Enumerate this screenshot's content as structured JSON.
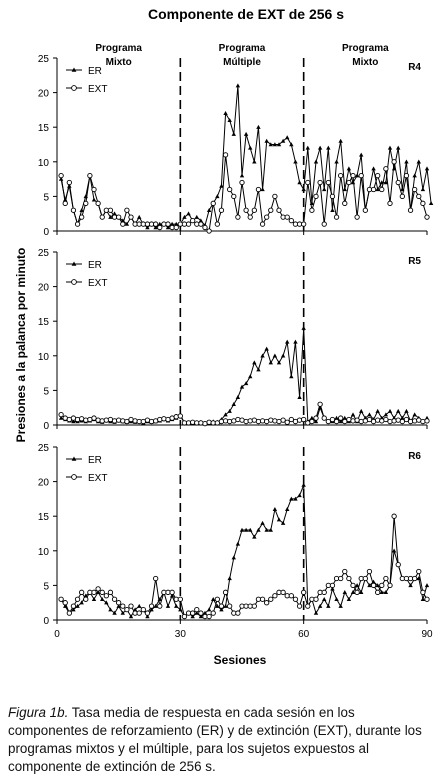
{
  "figure": {
    "title": "Componente de EXT de 256 s",
    "caption_label": "Figura 1b.",
    "caption_text": "Tasa media de respuesta en cada sesión en los componentes de reforzamiento (ER) y de extinción (EXT), durante los programas mixtos y el múltiple, para los sujetos expuestos al componente de extinción de 256 s."
  },
  "chart_data": {
    "type": "line",
    "xlabel": "Sesiones",
    "ylabel": "Presiones a la palanca por minuto",
    "xlim": [
      0,
      90
    ],
    "ylim": [
      0,
      25
    ],
    "xticks": [
      0,
      30,
      60,
      90
    ],
    "yticks": [
      0,
      5,
      10,
      15,
      20,
      25
    ],
    "phase_boundaries": [
      30,
      60
    ],
    "phase_labels": [
      {
        "line1": "Programa",
        "line2": "Mixto"
      },
      {
        "line1": "Programa",
        "line2": "Múltiple"
      },
      {
        "line1": "Programa",
        "line2": "Mixto"
      }
    ],
    "legend": [
      "ER",
      "EXT"
    ],
    "legend_position": "top-left",
    "grid": false,
    "panels": [
      {
        "subject": "R4",
        "x_start": 1,
        "series": [
          {
            "name": "ER",
            "marker": "triangle",
            "values": [
              7.5,
              4.5,
              6.5,
              3,
              1,
              3,
              5,
              8,
              4.5,
              4,
              2,
              3,
              2,
              2.5,
              2,
              1.5,
              1,
              2,
              1,
              2,
              1,
              0.5,
              1,
              0.5,
              1,
              1,
              0.5,
              1,
              1,
              1,
              2,
              2.5,
              1.5,
              2,
              1.5,
              0.8,
              3,
              4,
              5,
              6.5,
              17,
              16,
              14,
              21,
              8,
              14,
              12,
              10,
              15,
              6,
              13,
              12.5,
              12.5,
              12.5,
              13,
              13.5,
              12.5,
              10,
              7,
              6,
              12,
              4,
              10,
              12,
              6,
              12,
              3,
              10,
              13,
              6,
              9,
              7,
              8,
              11,
              3,
              6,
              9,
              6,
              7,
              7,
              12,
              9,
              12,
              6,
              10,
              3,
              8,
              10,
              6,
              9,
              4
            ]
          },
          {
            "name": "EXT",
            "marker": "circle",
            "values": [
              8,
              4,
              7,
              3,
              1,
              2,
              4,
              8,
              6,
              4,
              2,
              3,
              3,
              2,
              2,
              1,
              3,
              2,
              1,
              1,
              1,
              1,
              1,
              1,
              0.5,
              1,
              1,
              0.5,
              0.5,
              1,
              1,
              1,
              1.5,
              1,
              1,
              0.5,
              0,
              4,
              1,
              3,
              11,
              6,
              5,
              2,
              7,
              3,
              2,
              3,
              6,
              1,
              2,
              3,
              5,
              3,
              2,
              2,
              1.5,
              1,
              1,
              1,
              7,
              3,
              5,
              7,
              1,
              7,
              5,
              2,
              8,
              4,
              7,
              8,
              2,
              8,
              3,
              6,
              6,
              8,
              6,
              9,
              4,
              10,
              7,
              5,
              8,
              3,
              6,
              5,
              4,
              2
            ]
          }
        ]
      },
      {
        "subject": "R5",
        "x_start": 1,
        "series": [
          {
            "name": "ER",
            "marker": "triangle",
            "values": [
              1,
              0.8,
              0.6,
              0.5,
              0.5,
              0.6,
              0.5,
              0.6,
              0.8,
              0.5,
              0.4,
              0.6,
              0.5,
              0.4,
              0.6,
              0.5,
              0.4,
              0.5,
              0.4,
              0.5,
              0.3,
              0.5,
              0.4,
              0.5,
              0.6,
              0.8,
              0.6,
              0.8,
              1,
              1.5,
              0.3,
              0.2,
              0.3,
              0.2,
              0.4,
              0.2,
              0.3,
              0.5,
              0.4,
              0.8,
              1.5,
              2,
              3,
              4,
              5.5,
              6,
              7,
              9,
              8,
              10,
              11,
              9,
              10,
              9,
              10,
              12,
              7,
              12,
              4,
              14,
              0.5,
              1,
              0.5,
              2.5,
              1,
              0.5,
              0.5,
              1,
              0.5,
              1,
              0.5,
              1.5,
              0.5,
              2,
              1,
              1.5,
              0.8,
              2,
              1,
              1.5,
              2,
              1,
              2,
              1,
              2,
              0.5,
              1.5,
              1,
              0.5,
              1
            ]
          },
          {
            "name": "EXT",
            "marker": "circle",
            "values": [
              1.5,
              1,
              0.8,
              1,
              0.8,
              0.9,
              0.7,
              0.8,
              1,
              0.7,
              0.6,
              0.7,
              0.8,
              0.6,
              0.7,
              0.6,
              0.5,
              0.8,
              0.6,
              0.5,
              0.5,
              0.7,
              0.5,
              0.6,
              0.8,
              0.9,
              0.8,
              1,
              1.2,
              1.3,
              0.3,
              0.3,
              0.4,
              0.3,
              0.3,
              0.2,
              0.4,
              0.3,
              0.3,
              0.5,
              0.6,
              0.5,
              0.6,
              0.8,
              0.7,
              0.5,
              0.6,
              0.7,
              0.5,
              0.6,
              0.5,
              0.7,
              0.6,
              0.5,
              0.7,
              0.4,
              0.8,
              0.5,
              0.7,
              0.8,
              0.3,
              0.5,
              1,
              3,
              1,
              0.5,
              0.8,
              0.5,
              1,
              0.5,
              0.8,
              0.6,
              0.7,
              0.5,
              0.6,
              0.8,
              0.5,
              0.7,
              0.6,
              0.8,
              0.5,
              0.6,
              0.7,
              0.5,
              0.8,
              0.5,
              0.6,
              0.7,
              0.5,
              0.6
            ]
          }
        ]
      },
      {
        "subject": "R6",
        "x_start": 1,
        "series": [
          {
            "name": "ER",
            "marker": "triangle",
            "values": [
              3,
              2,
              1,
              1.5,
              2,
              2.5,
              3.5,
              4,
              3,
              4,
              3,
              2.5,
              1.5,
              1,
              2,
              1,
              1.5,
              0.5,
              1.5,
              2,
              1.5,
              0.5,
              1.5,
              2,
              3,
              4,
              2,
              3.5,
              2,
              1.5,
              0.5,
              1,
              0.5,
              1,
              0.5,
              1,
              1.5,
              3,
              2,
              1.5,
              2,
              6,
              9,
              11,
              13,
              13,
              13,
              12,
              13,
              14,
              13,
              13,
              16,
              14.5,
              14,
              16,
              17.5,
              17.5,
              18,
              19.5,
              2,
              3,
              1,
              2,
              3,
              2,
              4.5,
              3,
              2,
              4,
              3,
              4,
              5,
              4,
              6,
              5,
              5.5,
              5,
              4,
              4,
              5,
              10,
              8,
              6,
              6,
              5,
              6,
              6,
              3,
              5
            ]
          },
          {
            "name": "EXT",
            "marker": "circle",
            "values": [
              3,
              2.5,
              1,
              2,
              3,
              4,
              3,
              4,
              4,
              4.5,
              4,
              3.5,
              4,
              3,
              2.5,
              2,
              1.5,
              2,
              1,
              1,
              1.5,
              1,
              2,
              6,
              2,
              4,
              4,
              4,
              3,
              3,
              0.5,
              1,
              1,
              1.5,
              1,
              0.5,
              0.5,
              1,
              3,
              2,
              4,
              2,
              1,
              1,
              2,
              2,
              2,
              2,
              3,
              3,
              2.5,
              3,
              3.5,
              4,
              4,
              3.5,
              3.5,
              3,
              2,
              4,
              2,
              3,
              3,
              4,
              4,
              5,
              5,
              6,
              6,
              7,
              6,
              5,
              4,
              6,
              6,
              7,
              5,
              4,
              5,
              6,
              5,
              15,
              8,
              6,
              6,
              6,
              6,
              7,
              4,
              3
            ]
          }
        ]
      }
    ]
  }
}
